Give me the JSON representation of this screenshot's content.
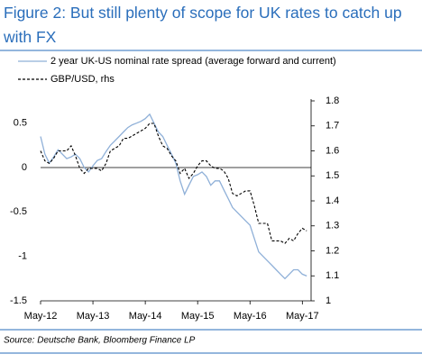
{
  "chart_data": {
    "type": "line",
    "title": "Figure 2: But still plenty of scope for UK rates to catch up with FX",
    "source": "Source: Deutsche Bank, Bloomberg Finance LP",
    "x": [
      "2012-05",
      "2012-06",
      "2012-07",
      "2012-08",
      "2012-09",
      "2012-10",
      "2012-11",
      "2012-12",
      "2013-01",
      "2013-02",
      "2013-03",
      "2013-04",
      "2013-05",
      "2013-06",
      "2013-07",
      "2013-08",
      "2013-09",
      "2013-10",
      "2013-11",
      "2013-12",
      "2014-01",
      "2014-02",
      "2014-03",
      "2014-04",
      "2014-05",
      "2014-06",
      "2014-07",
      "2014-08",
      "2014-09",
      "2014-10",
      "2014-11",
      "2014-12",
      "2015-01",
      "2015-02",
      "2015-03",
      "2015-04",
      "2015-05",
      "2015-06",
      "2015-07",
      "2015-08",
      "2015-09",
      "2015-10",
      "2015-11",
      "2015-12",
      "2016-01",
      "2016-02",
      "2016-03",
      "2016-04",
      "2016-05",
      "2016-06",
      "2016-07",
      "2016-08",
      "2016-09",
      "2016-10",
      "2016-11",
      "2016-12",
      "2017-01",
      "2017-02",
      "2017-03",
      "2017-04",
      "2017-05",
      "2017-06"
    ],
    "xlim": [
      "2012-05",
      "2017-07"
    ],
    "xticks": [
      {
        "value": "2012-05",
        "label": "May-12"
      },
      {
        "value": "2013-05",
        "label": "May-13"
      },
      {
        "value": "2014-05",
        "label": "May-14"
      },
      {
        "value": "2015-05",
        "label": "May-15"
      },
      {
        "value": "2016-05",
        "label": "May-16"
      },
      {
        "value": "2017-05",
        "label": "May-17"
      }
    ],
    "ylim": [
      -1.5,
      0.75
    ],
    "yticks": [
      -1.5,
      -1,
      -0.5,
      0,
      0.5
    ],
    "y2lim": [
      1.0,
      1.8
    ],
    "y2ticks": [
      1,
      1.1,
      1.2,
      1.3,
      1.4,
      1.5,
      1.6,
      1.7,
      1.8
    ],
    "series": [
      {
        "name": "2 year UK-US nominal rate spread (average forward and current)",
        "color": "#8fb0d8",
        "line_style": "solid",
        "values": [
          0.35,
          0.15,
          0.05,
          0.12,
          0.2,
          0.15,
          0.1,
          0.12,
          0.15,
          0.1,
          0.0,
          -0.05,
          0.02,
          0.08,
          0.1,
          0.18,
          0.25,
          0.3,
          0.35,
          0.4,
          0.45,
          0.48,
          0.5,
          0.52,
          0.55,
          0.6,
          0.5,
          0.4,
          0.35,
          0.25,
          0.15,
          0.05,
          -0.15,
          -0.3,
          -0.2,
          -0.1,
          -0.08,
          -0.05,
          -0.1,
          -0.2,
          -0.15,
          -0.15,
          -0.25,
          -0.35,
          -0.45,
          -0.5,
          -0.55,
          -0.6,
          -0.65,
          -0.8,
          -0.95,
          -1.0,
          -1.05,
          -1.1,
          -1.15,
          -1.2,
          -1.25,
          -1.2,
          -1.15,
          -1.15,
          -1.2,
          -1.22
        ]
      },
      {
        "name": "GBP/USD, rhs",
        "color": "#000000",
        "line_style": "dashed",
        "axis": "y2",
        "values": [
          1.6,
          1.56,
          1.55,
          1.57,
          1.6,
          1.6,
          1.6,
          1.62,
          1.58,
          1.53,
          1.51,
          1.53,
          1.53,
          1.53,
          1.52,
          1.55,
          1.6,
          1.61,
          1.62,
          1.65,
          1.65,
          1.66,
          1.67,
          1.68,
          1.69,
          1.71,
          1.71,
          1.66,
          1.62,
          1.61,
          1.58,
          1.56,
          1.51,
          1.53,
          1.49,
          1.51,
          1.54,
          1.56,
          1.56,
          1.54,
          1.53,
          1.53,
          1.52,
          1.49,
          1.43,
          1.42,
          1.43,
          1.44,
          1.44,
          1.38,
          1.31,
          1.31,
          1.31,
          1.24,
          1.24,
          1.24,
          1.23,
          1.25,
          1.24,
          1.27,
          1.29,
          1.28
        ]
      }
    ],
    "zero_line": true
  }
}
